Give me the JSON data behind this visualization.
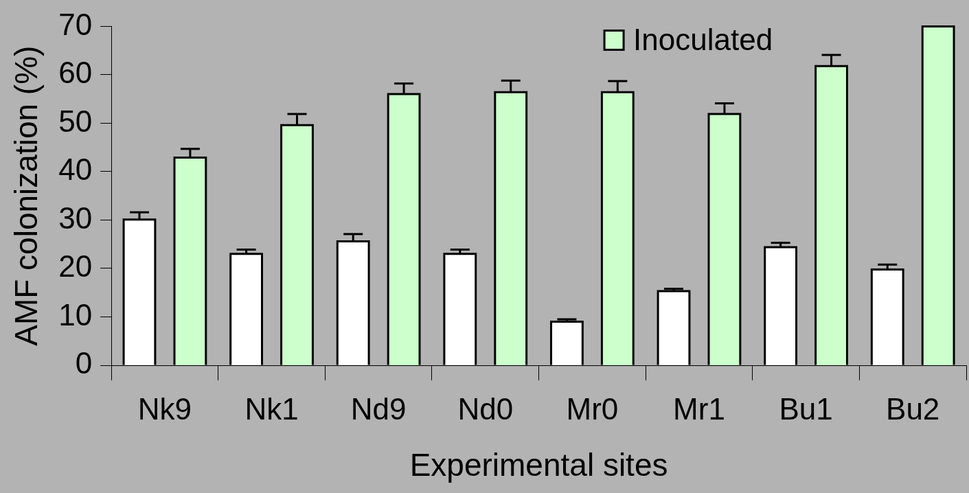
{
  "chart_data": {
    "type": "bar",
    "xlabel": "Experimental sites",
    "ylabel": "AMF colonization (%)",
    "categories": [
      "Nk9",
      "Nk1",
      "Nd9",
      "Nd0",
      "Mr0",
      "Mr1",
      "Bu1",
      "Bu2"
    ],
    "series": [
      {
        "color": "#ffffff",
        "values": [
          30.1,
          23.0,
          25.6,
          23.0,
          9.0,
          15.3,
          24.4,
          19.8
        ],
        "errors": [
          [
            30.1,
            31.6
          ],
          [
            23.0,
            23.9
          ],
          [
            25.6,
            27.1
          ],
          [
            23.0,
            23.9
          ],
          [
            9.0,
            9.5
          ],
          [
            15.3,
            15.8
          ],
          [
            24.4,
            25.3
          ],
          [
            19.8,
            20.8
          ]
        ]
      },
      {
        "name": "Inoculated",
        "color": "#ccffcc",
        "values": [
          42.9,
          49.6,
          56.0,
          56.4,
          56.4,
          51.9,
          61.8,
          70
        ],
        "errors": [
          [
            42.9,
            44.7
          ],
          [
            49.6,
            51.9
          ],
          [
            56.0,
            58.2
          ],
          [
            56.4,
            58.8
          ],
          [
            56.4,
            58.7
          ],
          [
            51.9,
            54.1
          ],
          [
            61.8,
            64.1
          ],
          null
        ]
      }
    ],
    "ylim": [
      0,
      70
    ],
    "yticks": [
      0,
      10,
      20,
      30,
      40,
      50,
      60,
      70
    ],
    "grid": false,
    "legend": "top right"
  }
}
